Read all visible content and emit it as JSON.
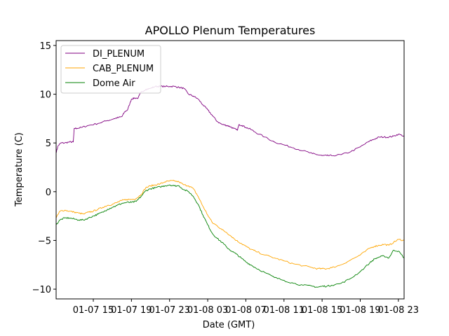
{
  "chart_data": {
    "type": "line",
    "title": "APOLLO Plenum Temperatures",
    "xlabel": "Date (GMT)",
    "ylabel": "Temperature (C)",
    "xlim": [
      11.1,
      47.6
    ],
    "ylim": [
      -11,
      15.5
    ],
    "xticks": [
      {
        "value": 15,
        "label": "01-07 15"
      },
      {
        "value": 19,
        "label": "01-07 19"
      },
      {
        "value": 23,
        "label": "01-07 23"
      },
      {
        "value": 27,
        "label": "01-08 03"
      },
      {
        "value": 31,
        "label": "01-08 07"
      },
      {
        "value": 35,
        "label": "01-08 11"
      },
      {
        "value": 39,
        "label": "01-08 15"
      },
      {
        "value": 43,
        "label": "01-08 19"
      },
      {
        "value": 47,
        "label": "01-08 23"
      }
    ],
    "yticks": [
      {
        "value": -10,
        "label": "−10"
      },
      {
        "value": -5,
        "label": "−5"
      },
      {
        "value": 0,
        "label": "0"
      },
      {
        "value": 5,
        "label": "5"
      },
      {
        "value": 10,
        "label": "10"
      },
      {
        "value": 15,
        "label": "15"
      }
    ],
    "grid": false,
    "legend_position": "upper-left",
    "series": [
      {
        "name": "DI_PLENUM",
        "color": "#800080",
        "x": [
          11.1,
          11.3,
          11.6,
          12.0,
          12.5,
          12.9,
          13.0,
          13.3,
          13.8,
          14.5,
          15.5,
          16.5,
          17.2,
          17.6,
          18.0,
          18.3,
          18.6,
          19.0,
          19.3,
          19.7,
          20.0,
          20.5,
          21.0,
          21.5,
          22.0,
          22.6,
          23.0,
          23.5,
          24.0,
          24.5,
          25.0,
          25.5,
          26.0,
          26.5,
          27.0,
          27.5,
          28.0,
          28.5,
          29.0,
          29.3,
          29.7,
          30.1,
          30.3,
          30.6,
          31.0,
          31.5,
          32.0,
          33.0,
          34.0,
          35.0,
          36.0,
          37.0,
          38.0,
          38.5,
          39.0,
          39.5,
          40.0,
          41.0,
          42.0,
          43.0,
          44.0,
          44.5,
          45.0,
          45.5,
          46.0,
          46.5,
          47.0,
          47.6
        ],
        "y": [
          4.0,
          4.7,
          5.0,
          5.0,
          5.1,
          5.1,
          6.5,
          6.5,
          6.6,
          6.8,
          7.0,
          7.3,
          7.5,
          7.6,
          7.7,
          8.2,
          8.4,
          9.5,
          9.6,
          9.6,
          10.2,
          10.5,
          10.6,
          10.8,
          10.8,
          10.8,
          10.8,
          10.8,
          10.7,
          10.6,
          10.0,
          9.8,
          9.5,
          8.9,
          8.4,
          7.8,
          7.2,
          6.9,
          6.8,
          6.7,
          6.5,
          6.3,
          6.9,
          6.8,
          6.6,
          6.4,
          6.1,
          5.6,
          5.1,
          4.8,
          4.5,
          4.2,
          3.9,
          3.8,
          3.7,
          3.7,
          3.7,
          3.8,
          4.1,
          4.6,
          5.2,
          5.4,
          5.6,
          5.6,
          5.6,
          5.7,
          5.9,
          5.7
        ]
      },
      {
        "name": "CAB_PLENUM",
        "color": "#ffa500",
        "x": [
          11.1,
          11.5,
          12.0,
          12.5,
          13.0,
          13.5,
          14.0,
          14.5,
          15.0,
          15.5,
          16.0,
          16.5,
          17.0,
          17.5,
          18.0,
          18.5,
          19.0,
          19.5,
          20.0,
          20.5,
          21.0,
          21.5,
          22.0,
          22.5,
          23.0,
          23.5,
          24.0,
          24.5,
          25.0,
          25.5,
          26.0,
          26.5,
          27.0,
          27.5,
          28.0,
          28.5,
          29.0,
          29.5,
          30.0,
          30.5,
          31.0,
          31.5,
          32.0,
          33.0,
          34.0,
          35.0,
          36.0,
          37.0,
          38.0,
          38.5,
          39.0,
          39.5,
          40.0,
          41.0,
          42.0,
          43.0,
          44.0,
          44.5,
          45.0,
          45.5,
          46.0,
          46.5,
          47.0,
          47.6
        ],
        "y": [
          -2.7,
          -2.0,
          -1.9,
          -2.0,
          -2.1,
          -2.2,
          -2.3,
          -2.1,
          -2.0,
          -1.8,
          -1.6,
          -1.4,
          -1.3,
          -1.1,
          -0.9,
          -0.8,
          -0.8,
          -0.7,
          -0.3,
          0.4,
          0.6,
          0.7,
          0.8,
          1.0,
          1.1,
          1.1,
          1.0,
          0.7,
          0.6,
          0.3,
          -0.5,
          -1.5,
          -2.4,
          -3.2,
          -3.5,
          -3.9,
          -4.2,
          -4.6,
          -5.0,
          -5.3,
          -5.6,
          -5.9,
          -6.1,
          -6.5,
          -6.8,
          -7.1,
          -7.4,
          -7.6,
          -7.8,
          -7.9,
          -7.9,
          -7.9,
          -7.8,
          -7.5,
          -7.0,
          -6.5,
          -5.8,
          -5.6,
          -5.5,
          -5.4,
          -5.5,
          -5.2,
          -4.9,
          -5.0
        ]
      },
      {
        "name": "Dome Air",
        "color": "#008000",
        "x": [
          11.1,
          11.5,
          12.0,
          12.5,
          13.0,
          13.5,
          14.0,
          14.5,
          15.0,
          15.5,
          16.0,
          16.5,
          17.0,
          17.5,
          18.0,
          18.5,
          19.0,
          19.5,
          20.0,
          20.5,
          21.0,
          21.5,
          22.0,
          22.5,
          23.0,
          23.5,
          24.0,
          24.5,
          25.0,
          25.5,
          26.0,
          26.5,
          27.0,
          27.5,
          28.0,
          28.5,
          29.0,
          29.5,
          30.0,
          30.5,
          31.0,
          31.5,
          32.0,
          33.0,
          34.0,
          35.0,
          36.0,
          37.0,
          38.0,
          38.5,
          39.0,
          39.5,
          40.0,
          41.0,
          42.0,
          43.0,
          44.0,
          44.5,
          45.0,
          45.5,
          46.0,
          46.5,
          47.0,
          47.6
        ],
        "y": [
          -3.4,
          -2.9,
          -2.7,
          -2.7,
          -2.8,
          -2.9,
          -2.9,
          -2.7,
          -2.5,
          -2.3,
          -2.1,
          -1.8,
          -1.6,
          -1.4,
          -1.2,
          -1.1,
          -1.1,
          -1.0,
          -0.5,
          0.1,
          0.3,
          0.4,
          0.5,
          0.6,
          0.7,
          0.6,
          0.6,
          0.2,
          0.0,
          -0.5,
          -1.3,
          -2.4,
          -3.4,
          -4.3,
          -4.8,
          -5.2,
          -5.7,
          -6.1,
          -6.4,
          -6.8,
          -7.2,
          -7.5,
          -7.8,
          -8.3,
          -8.8,
          -9.1,
          -9.4,
          -9.6,
          -9.7,
          -9.8,
          -9.7,
          -9.7,
          -9.6,
          -9.4,
          -8.9,
          -8.2,
          -7.3,
          -6.9,
          -6.7,
          -6.6,
          -6.8,
          -6.0,
          -6.1,
          -6.8
        ]
      }
    ]
  }
}
